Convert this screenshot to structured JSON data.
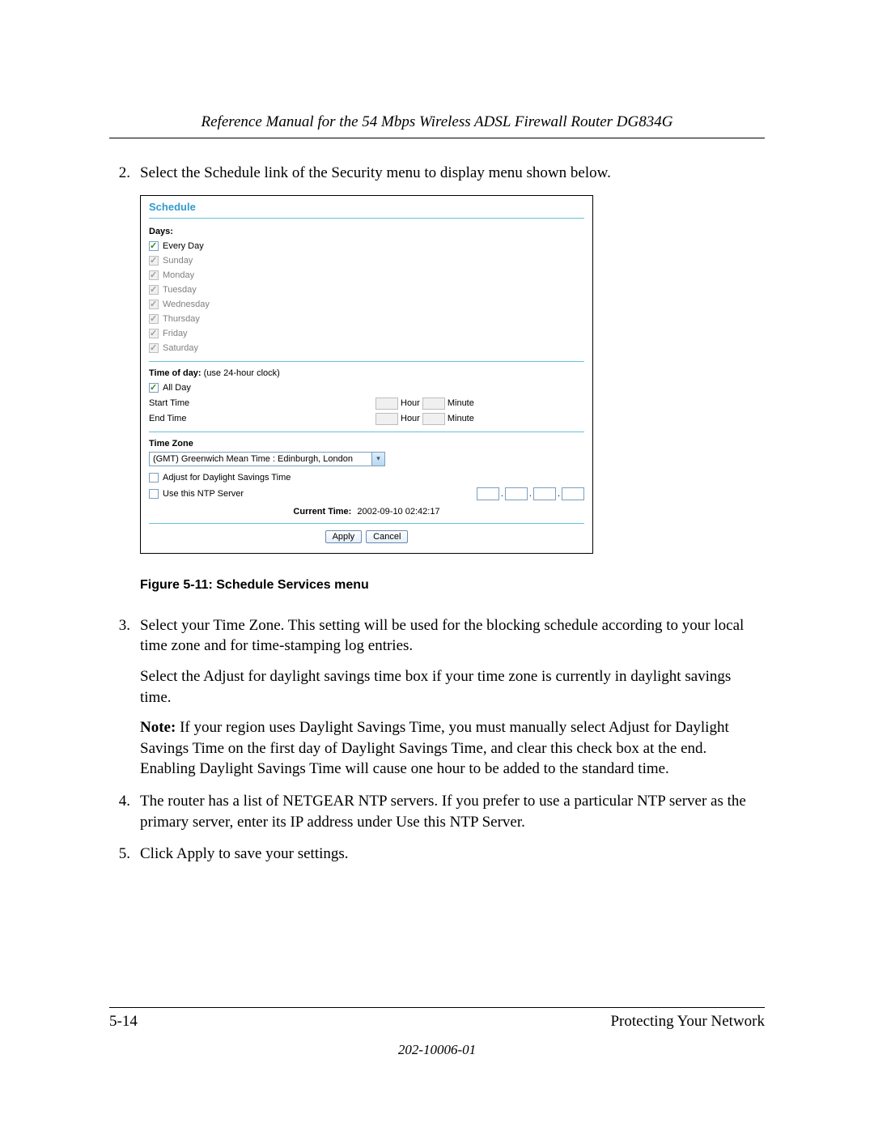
{
  "header": {
    "title": "Reference Manual for the 54 Mbps Wireless ADSL Firewall Router DG834G"
  },
  "steps": {
    "s2": {
      "num": "2.",
      "text": "Select the Schedule link of the Security menu to display menu shown below."
    },
    "s3": {
      "num": "3.",
      "p1": "Select your Time Zone. This setting will be used for the blocking schedule according to your local time zone and for time-stamping log entries.",
      "p2": "Select the Adjust for daylight savings time box if your time zone is currently in daylight savings time.",
      "note_label": "Note:",
      "note_body": " If your region uses Daylight Savings Time, you must manually select Adjust for Daylight Savings Time on the first day of Daylight Savings Time, and clear this check box at the end. Enabling Daylight Savings Time will cause one hour to be added to the standard time."
    },
    "s4": {
      "num": "4.",
      "text": "The router has a list of NETGEAR NTP servers. If you prefer to use a particular NTP server as the primary server, enter its IP address under Use this NTP Server."
    },
    "s5": {
      "num": "5.",
      "text": "Click Apply to save your settings."
    }
  },
  "ui": {
    "title": "Schedule",
    "days_label": "Days:",
    "every_day": "Every Day",
    "days": {
      "sun": "Sunday",
      "mon": "Monday",
      "tue": "Tuesday",
      "wed": "Wednesday",
      "thu": "Thursday",
      "fri": "Friday",
      "sat": "Saturday"
    },
    "tod_label": "Time of day:",
    "tod_hint": " (use 24-hour clock)",
    "all_day": "All Day",
    "start_time": "Start Time",
    "end_time": "End Time",
    "hour": "Hour",
    "minute": "Minute",
    "tz_label": "Time Zone",
    "tz_value": "(GMT) Greenwich Mean Time : Edinburgh, London",
    "dst": "Adjust for Daylight Savings Time",
    "ntp": "Use this NTP Server",
    "current_time_label": "Current Time:",
    "current_time_value": "2002-09-10 02:42:17",
    "apply": "Apply",
    "cancel": "Cancel",
    "colors": {
      "title": "#3399cc",
      "rule": "#66c2d9",
      "check_green": "#2a8c2a",
      "border": "#7b9ebd"
    }
  },
  "figure_caption": "Figure 5-11:  Schedule Services menu",
  "footer": {
    "page": "5-14",
    "section": "Protecting Your Network",
    "docnum": "202-10006-01"
  }
}
